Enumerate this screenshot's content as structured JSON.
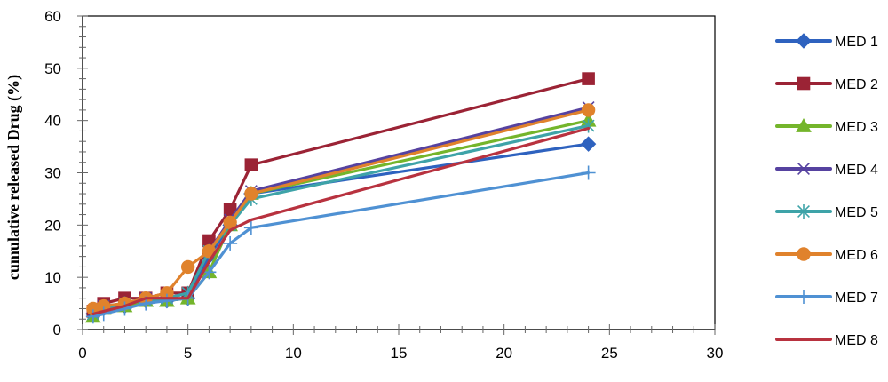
{
  "chart_data": {
    "type": "line",
    "title": "",
    "xlabel": "",
    "ylabel": "cumulative released Drug (%)",
    "xlim": [
      0,
      30
    ],
    "ylim": [
      0,
      60
    ],
    "x_ticks": [
      0,
      5,
      10,
      15,
      20,
      25,
      30
    ],
    "y_ticks": [
      0,
      10,
      20,
      30,
      40,
      50,
      60
    ],
    "x_tick_labels": [
      "0",
      "5",
      "10",
      "15",
      "20",
      "25",
      "30"
    ],
    "y_tick_labels": [
      "0",
      "10",
      "20",
      "30",
      "40",
      "50",
      "60"
    ],
    "grid": false,
    "legend_position": "right",
    "x": [
      0.5,
      1,
      2,
      3,
      4,
      5,
      6,
      7,
      8,
      24
    ],
    "series": [
      {
        "name": "MED 1",
        "color": "#2e62bf",
        "marker": "diamond",
        "values": [
          3,
          4,
          4.5,
          5.5,
          5.5,
          6,
          14,
          20,
          26,
          35.5
        ]
      },
      {
        "name": "MED 2",
        "color": "#9b2335",
        "marker": "square",
        "values": [
          3.5,
          5,
          6,
          6,
          7,
          7,
          17,
          23,
          31.5,
          48
        ]
      },
      {
        "name": "MED 3",
        "color": "#74b52b",
        "marker": "triangle",
        "values": [
          2.5,
          4,
          4.5,
          5.5,
          5.5,
          6,
          11,
          20,
          26,
          40
        ]
      },
      {
        "name": "MED 4",
        "color": "#5642a0",
        "marker": "x",
        "values": [
          3.5,
          4.5,
          5,
          6,
          6,
          7,
          15,
          21,
          26.5,
          42.5
        ]
      },
      {
        "name": "MED 5",
        "color": "#3ea3a8",
        "marker": "asterisk",
        "values": [
          3,
          4,
          5,
          5.5,
          6,
          7,
          15,
          20,
          25,
          39
        ]
      },
      {
        "name": "MED 6",
        "color": "#e0822c",
        "marker": "circle",
        "values": [
          4,
          4.5,
          5,
          6,
          7,
          12,
          15,
          20.5,
          26,
          42
        ]
      },
      {
        "name": "MED 7",
        "color": "#4f91d3",
        "marker": "plus",
        "values": [
          2.5,
          3,
          4,
          5,
          5.5,
          6,
          11,
          16.5,
          19.5,
          30
        ]
      },
      {
        "name": "MED 8",
        "color": "#b8323f",
        "marker": "none",
        "values": [
          3,
          3.5,
          4.5,
          6,
          6,
          6,
          13,
          19,
          21,
          38.5
        ]
      }
    ]
  }
}
